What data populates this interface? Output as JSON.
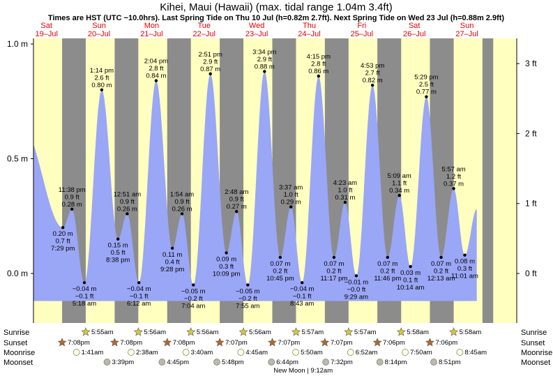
{
  "title": "Kihei, Maui (Hawaii) (max. tidal range 1.04m 3.4ft)",
  "subtitle": "Times are HST (UTC −10.0hrs). Last Spring Tide on Thu 10 Jul (h=0.82m 2.7ft). Next Spring Tide on Wed 23 Jul (h=0.88m 2.9ft)",
  "days": [
    {
      "dow": "Sat",
      "date": "19–Jul"
    },
    {
      "dow": "Sun",
      "date": "20–Jul"
    },
    {
      "dow": "Mon",
      "date": "21–Jul"
    },
    {
      "dow": "Tue",
      "date": "22–Jul"
    },
    {
      "dow": "Wed",
      "date": "23–Jul"
    },
    {
      "dow": "Thu",
      "date": "24–Jul"
    },
    {
      "dow": "Fri",
      "date": "25–Jul"
    },
    {
      "dow": "Sat",
      "date": "26–Jul"
    },
    {
      "dow": "Sun",
      "date": "27–Jul"
    }
  ],
  "chart_data": {
    "type": "area",
    "x_unit": "hours from 00:00 Sat 19 Jul (HST)",
    "y_left": {
      "unit": "m",
      "ticks": [
        "1.0 m",
        "0.5 m",
        "0.0 m"
      ],
      "values": [
        1.0,
        0.5,
        0.0
      ],
      "range": [
        -0.2,
        1.04
      ]
    },
    "y_right": {
      "unit": "ft",
      "ticks": [
        "3 ft",
        "2 ft",
        "1 ft",
        "0 ft"
      ],
      "values": [
        3,
        2,
        1,
        0
      ]
    },
    "curve_start": {
      "t": 1.0,
      "h": 0.64
    },
    "curve_end": {
      "t": 208.5,
      "h": 0.28
    },
    "tides": [
      {
        "t": 19.48,
        "h": 0.2,
        "label": [
          "0.20 m",
          "0.7 ft",
          "7:29 pm"
        ],
        "pos": "below"
      },
      {
        "t": 23.63,
        "h": 0.28,
        "label": [
          "11:38 pm",
          "0.9 ft",
          "0.28 m"
        ],
        "pos": "above"
      },
      {
        "t": 29.3,
        "h": -0.04,
        "label": [
          "−0.04 m",
          "−0.1 ft",
          "5:18 am"
        ],
        "pos": "below"
      },
      {
        "t": 37.23,
        "h": 0.8,
        "label": [
          "1:14 pm",
          "2.6 ft",
          "0.80 m"
        ],
        "pos": "above"
      },
      {
        "t": 44.63,
        "h": 0.15,
        "label": [
          "0.15 m",
          "0.5 ft",
          "8:38 pm"
        ],
        "pos": "below"
      },
      {
        "t": 48.85,
        "h": 0.26,
        "label": [
          "12:51 am",
          "0.9 ft",
          "0.26 m"
        ],
        "pos": "above"
      },
      {
        "t": 54.2,
        "h": -0.04,
        "label": [
          "−0.04 m",
          "−0.1 ft",
          "6:12 am"
        ],
        "pos": "below"
      },
      {
        "t": 62.07,
        "h": 0.84,
        "label": [
          "2:04 pm",
          "2.8 ft",
          "0.84 m"
        ],
        "pos": "above"
      },
      {
        "t": 69.47,
        "h": 0.11,
        "label": [
          "0.11 m",
          "0.4 ft",
          "9:28 pm"
        ],
        "pos": "below"
      },
      {
        "t": 73.9,
        "h": 0.26,
        "label": [
          "1:54 am",
          "0.9 ft",
          "0.26 m"
        ],
        "pos": "above"
      },
      {
        "t": 79.07,
        "h": -0.05,
        "label": [
          "−0.05 m",
          "−0.2 ft",
          "7:04 am"
        ],
        "pos": "below"
      },
      {
        "t": 86.85,
        "h": 0.87,
        "label": [
          "2:51 pm",
          "2.9 ft",
          "0.87 m"
        ],
        "pos": "above"
      },
      {
        "t": 94.15,
        "h": 0.09,
        "label": [
          "0.09 m",
          "0.3 ft",
          "10:09 pm"
        ],
        "pos": "below"
      },
      {
        "t": 98.8,
        "h": 0.27,
        "label": [
          "2:48 am",
          "0.9 ft",
          "0.27 m"
        ],
        "pos": "above"
      },
      {
        "t": 103.92,
        "h": -0.05,
        "label": [
          "−0.05 m",
          "−0.2 ft",
          "7:55 am"
        ],
        "pos": "below"
      },
      {
        "t": 111.57,
        "h": 0.88,
        "label": [
          "3:34 pm",
          "2.9 ft",
          "0.88 m"
        ],
        "pos": "above"
      },
      {
        "t": 118.75,
        "h": 0.07,
        "label": [
          "0.07 m",
          "0.2 ft",
          "10:45 pm"
        ],
        "pos": "below"
      },
      {
        "t": 123.62,
        "h": 0.29,
        "label": [
          "3:37 am",
          "1.0 ft",
          "0.29 m"
        ],
        "pos": "above"
      },
      {
        "t": 128.72,
        "h": -0.04,
        "label": [
          "−0.04 m",
          "−0.1 ft",
          "8:43 am"
        ],
        "pos": "below"
      },
      {
        "t": 136.25,
        "h": 0.86,
        "label": [
          "4:15 pm",
          "2.8 ft",
          "0.86 m"
        ],
        "pos": "above"
      },
      {
        "t": 143.28,
        "h": 0.07,
        "label": [
          "0.07 m",
          "0.2 ft",
          "11:17 pm"
        ],
        "pos": "below"
      },
      {
        "t": 148.38,
        "h": 0.31,
        "label": [
          "4:23 am",
          "1.0 ft",
          "0.31 m"
        ],
        "pos": "above"
      },
      {
        "t": 153.48,
        "h": -0.01,
        "label": [
          "−0.01 m",
          "−0.0 ft",
          "9:29 am"
        ],
        "pos": "below"
      },
      {
        "t": 160.88,
        "h": 0.82,
        "label": [
          "4:53 pm",
          "2.7 ft",
          "0.82 m"
        ],
        "pos": "above"
      },
      {
        "t": 167.77,
        "h": 0.07,
        "label": [
          "0.07 m",
          "0.2 ft",
          "11:46 pm"
        ],
        "pos": "below"
      },
      {
        "t": 173.15,
        "h": 0.34,
        "label": [
          "5:09 am",
          "1.1 ft",
          "0.34 m"
        ],
        "pos": "above"
      },
      {
        "t": 178.23,
        "h": 0.03,
        "label": [
          "0.03 m",
          "0.1 ft",
          "10:14 am"
        ],
        "pos": "below"
      },
      {
        "t": 185.48,
        "h": 0.77,
        "label": [
          "5:29 pm",
          "2.5 ft",
          "0.77 m"
        ],
        "pos": "above"
      },
      {
        "t": 192.22,
        "h": 0.07,
        "label": [
          "0.07 m",
          "0.2 ft",
          "12:13 am"
        ],
        "pos": "below"
      },
      {
        "t": 197.95,
        "h": 0.37,
        "label": [
          "5:57 am",
          "1.2 ft",
          "0.37 m"
        ],
        "pos": "above"
      },
      {
        "t": 203.02,
        "h": 0.08,
        "label": [
          "0.08 m",
          "0.3 ft",
          "11:01 am"
        ],
        "pos": "below"
      }
    ],
    "night_intervals": [
      [
        19.13,
        29.92
      ],
      [
        43.13,
        53.93
      ],
      [
        67.13,
        77.93
      ],
      [
        91.12,
        101.93
      ],
      [
        115.12,
        125.95
      ],
      [
        139.12,
        149.95
      ],
      [
        163.1,
        173.97
      ],
      [
        187.1,
        197.97
      ],
      [
        211.1,
        216
      ]
    ],
    "colors": {
      "day": "#ffffc0",
      "night": "#8c8c8c",
      "water": "#9aa6f6",
      "marker": "#000000"
    }
  },
  "rows": {
    "labels": [
      "Sunrise",
      "Sunset",
      "Moonrise",
      "Moonset"
    ],
    "sunrise": [
      {
        "t": 29.92,
        "text": "5:55am"
      },
      {
        "t": 53.93,
        "text": "5:56am"
      },
      {
        "t": 77.93,
        "text": "5:56am"
      },
      {
        "t": 101.93,
        "text": "5:56am"
      },
      {
        "t": 125.95,
        "text": "5:57am"
      },
      {
        "t": 149.95,
        "text": "5:57am"
      },
      {
        "t": 173.97,
        "text": "5:58am"
      },
      {
        "t": 197.97,
        "text": "5:58am"
      }
    ],
    "sunset": [
      {
        "t": 19.13,
        "text": "7:08pm"
      },
      {
        "t": 43.13,
        "text": "7:08pm"
      },
      {
        "t": 67.13,
        "text": "7:08pm"
      },
      {
        "t": 91.12,
        "text": "7:07pm"
      },
      {
        "t": 115.12,
        "text": "7:07pm"
      },
      {
        "t": 139.12,
        "text": "7:07pm"
      },
      {
        "t": 163.1,
        "text": "7:06pm"
      },
      {
        "t": 187.1,
        "text": "7:06pm"
      }
    ],
    "moonrise": [
      {
        "t": 25.68,
        "text": "1:41am"
      },
      {
        "t": 50.63,
        "text": "2:38am"
      },
      {
        "t": 75.67,
        "text": "3:40am"
      },
      {
        "t": 100.75,
        "text": "4:45am"
      },
      {
        "t": 125.83,
        "text": "5:50am"
      },
      {
        "t": 150.87,
        "text": "6:52am"
      },
      {
        "t": 175.83,
        "text": "7:50am"
      },
      {
        "t": 200.75,
        "text": "8:45am"
      }
    ],
    "moonset": [
      {
        "t": 39.65,
        "text": "3:39pm"
      },
      {
        "t": 64.75,
        "text": "4:45pm"
      },
      {
        "t": 89.8,
        "text": "5:48pm"
      },
      {
        "t": 114.73,
        "text": "6:44pm"
      },
      {
        "t": 139.53,
        "text": "7:32pm"
      },
      {
        "t": 164.23,
        "text": "8:14pm"
      },
      {
        "t": 188.85,
        "text": "8:51pm"
      }
    ],
    "new_moon": {
      "t": 129.2,
      "text": "New Moon | 9:12am"
    },
    "colors": {
      "sunrise": "#d9c93a",
      "sunset": "#b06a2c",
      "moonrise": "#ffffd8",
      "moonset": "#bdb9a4"
    }
  }
}
